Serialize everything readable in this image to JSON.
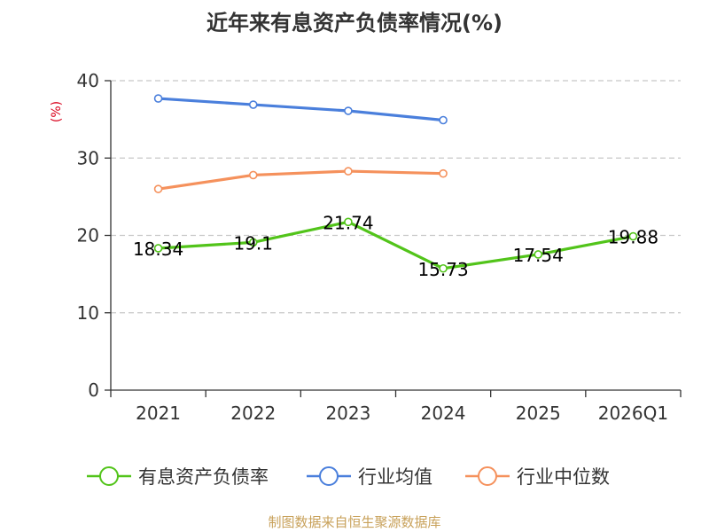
{
  "chart_data": {
    "type": "line",
    "title": "近年来有息资产负债率情况(%)",
    "ylabel": "(%)",
    "ylim": [
      0,
      40
    ],
    "yticks": [
      "0",
      "10",
      "20",
      "30",
      "40"
    ],
    "categories": [
      "2021",
      "2022",
      "2023",
      "2024",
      "2025",
      "2026Q1"
    ],
    "grid": true,
    "legend_position": "bottom",
    "series": [
      {
        "name": "有息资产负债率",
        "color": "#52c41a",
        "values": [
          18.34,
          19.1,
          21.74,
          15.73,
          17.54,
          19.88
        ],
        "data_labels": [
          "18.34",
          "19.1",
          "21.74",
          "15.73",
          "17.54",
          "19.88"
        ]
      },
      {
        "name": "行业均值",
        "color": "#4a7fdc",
        "values": [
          37.7,
          36.9,
          36.1,
          34.9,
          null,
          null
        ]
      },
      {
        "name": "行业中位数",
        "color": "#f5915c",
        "values": [
          26.0,
          27.8,
          28.3,
          28.0,
          null,
          null
        ]
      }
    ],
    "source": "制图数据来自恒生聚源数据库",
    "colors": {
      "title": "#333333",
      "ylabel": "#d9001b",
      "axis": "#333333",
      "grid": "#cccccc",
      "source": "#c8a15a"
    }
  }
}
